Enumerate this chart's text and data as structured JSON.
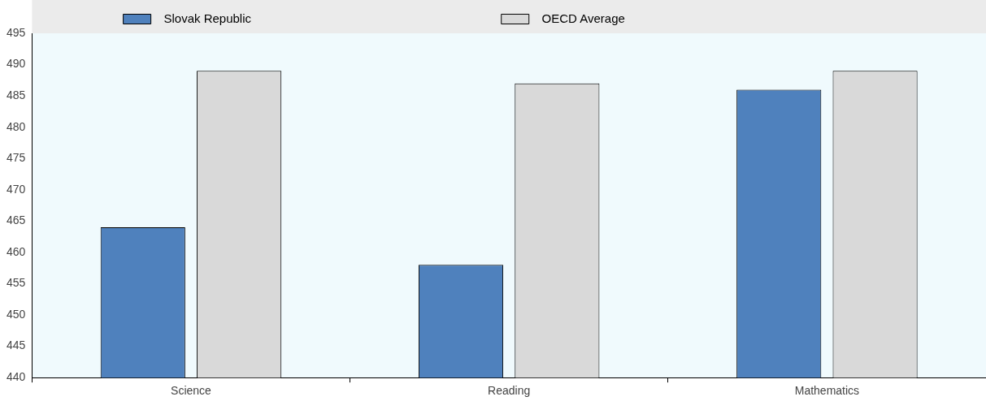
{
  "chart_data": {
    "type": "bar",
    "categories": [
      "Science",
      "Reading",
      "Mathematics"
    ],
    "series": [
      {
        "name": "Slovak Republic",
        "color": "#4f81bd",
        "values": [
          464,
          458,
          486
        ]
      },
      {
        "name": "OECD Average",
        "color": "#d9d9d9",
        "values": [
          489,
          487,
          489
        ]
      }
    ],
    "ylim": [
      440,
      495
    ],
    "yticks": [
      440,
      445,
      450,
      455,
      460,
      465,
      470,
      475,
      480,
      485,
      490,
      495
    ],
    "grid": false,
    "legend": "top"
  }
}
